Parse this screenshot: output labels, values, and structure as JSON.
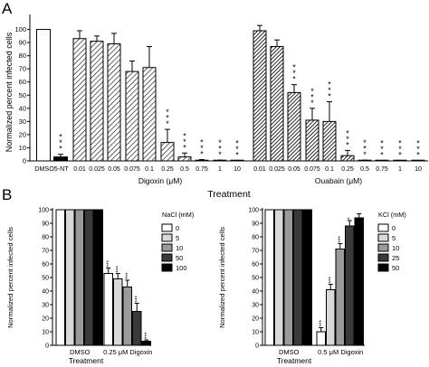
{
  "panel_a": {
    "letter": "A",
    "ylabel": "Normalized percent infected cells",
    "xlabel": "Treatment",
    "yticks": [
      "0",
      "10",
      "20",
      "30",
      "40",
      "50",
      "60",
      "70",
      "80",
      "90",
      "100"
    ]
  },
  "panel_b": {
    "letter": "B",
    "xlabel_left": "Treatment",
    "xlabel_right": "Treatment"
  },
  "chart_data": [
    {
      "id": "A-digoxin",
      "type": "bar",
      "group_label": "Digoxin (μM)",
      "ylim": [
        0,
        110
      ],
      "controls": [
        {
          "label": "DMSO",
          "value": 100,
          "error": 0,
          "stars": "",
          "fill": "white"
        },
        {
          "label": "5-NT",
          "value": 3,
          "error": 2,
          "stars": "***",
          "fill": "black"
        }
      ],
      "categories": [
        "0.01",
        "0.025",
        "0.05",
        "0.075",
        "0.1",
        "0.25",
        "0.5",
        "0.75",
        "1",
        "10"
      ],
      "values": [
        93,
        91,
        89,
        68,
        71,
        14,
        3,
        0.5,
        0.3,
        0.2
      ],
      "errors": [
        6,
        4,
        8,
        8,
        16,
        10,
        3,
        0.5,
        0.3,
        0.2
      ],
      "stars": [
        "",
        "",
        "",
        "",
        "",
        "***",
        "***",
        "***",
        "***",
        "***"
      ],
      "fill": "hatched"
    },
    {
      "id": "A-ouabain",
      "type": "bar",
      "group_label": "Ouabain (μM)",
      "ylim": [
        0,
        110
      ],
      "categories": [
        "0.01",
        "0.025",
        "0.05",
        "0.075",
        "0.1",
        "0.25",
        "0.5",
        "0.75",
        "1",
        "10"
      ],
      "values": [
        99,
        87,
        52,
        31,
        30,
        4,
        0.3,
        0.2,
        0.2,
        0.2
      ],
      "errors": [
        4,
        5,
        6,
        9,
        15,
        4,
        0.3,
        0.2,
        0.2,
        0.2
      ],
      "stars": [
        "",
        "",
        "***",
        "***",
        "***",
        "***",
        "***",
        "***",
        "***",
        "***"
      ],
      "fill": "dense-hatched"
    },
    {
      "id": "B-nacl",
      "type": "bar",
      "ylabel": "Normalized percent infected cells",
      "ylim": [
        0,
        100
      ],
      "yticks": [
        "0",
        "10",
        "20",
        "30",
        "40",
        "50",
        "60",
        "70",
        "80",
        "90",
        "100"
      ],
      "categories": [
        "DMSO",
        "0.25 μM Digoxin"
      ],
      "legend_title": "NaCl (mM)",
      "series": [
        {
          "name": "0",
          "color": "#ffffff",
          "values": [
            100,
            53
          ],
          "errors": [
            0,
            4
          ],
          "stars": [
            "",
            "***"
          ]
        },
        {
          "name": "5",
          "color": "#d9d9d9",
          "values": [
            100,
            49
          ],
          "errors": [
            0,
            4
          ],
          "stars": [
            "",
            "***"
          ]
        },
        {
          "name": "10",
          "color": "#9a9a9a",
          "values": [
            100,
            43
          ],
          "errors": [
            0,
            5
          ],
          "stars": [
            "",
            "***"
          ]
        },
        {
          "name": "50",
          "color": "#3a3a3a",
          "values": [
            100,
            25
          ],
          "errors": [
            0,
            6
          ],
          "stars": [
            "",
            "***"
          ]
        },
        {
          "name": "100",
          "color": "#000000",
          "values": [
            100,
            3
          ],
          "errors": [
            0,
            1
          ],
          "stars": [
            "",
            "***"
          ]
        }
      ]
    },
    {
      "id": "B-kcl",
      "type": "bar",
      "ylabel": "Normalized percent infected cells",
      "ylim": [
        0,
        100
      ],
      "yticks": [
        "0",
        "10",
        "20",
        "30",
        "40",
        "50",
        "60",
        "70",
        "80",
        "90",
        "100"
      ],
      "categories": [
        "DMSO",
        "0.5 μM Digoxin"
      ],
      "legend_title": "KCl (mM)",
      "series": [
        {
          "name": "0",
          "color": "#ffffff",
          "values": [
            100,
            10
          ],
          "errors": [
            0,
            3
          ],
          "stars": [
            "",
            "***"
          ]
        },
        {
          "name": "5",
          "color": "#d9d9d9",
          "values": [
            100,
            41
          ],
          "errors": [
            0,
            4
          ],
          "stars": [
            "",
            "***"
          ]
        },
        {
          "name": "10",
          "color": "#9a9a9a",
          "values": [
            100,
            71
          ],
          "errors": [
            0,
            4
          ],
          "stars": [
            "",
            "***"
          ]
        },
        {
          "name": "25",
          "color": "#3a3a3a",
          "values": [
            100,
            88
          ],
          "errors": [
            0,
            4
          ],
          "stars": [
            "",
            "*"
          ]
        },
        {
          "name": "50",
          "color": "#000000",
          "values": [
            100,
            94
          ],
          "errors": [
            0,
            3
          ],
          "stars": [
            "",
            ""
          ]
        }
      ]
    }
  ]
}
